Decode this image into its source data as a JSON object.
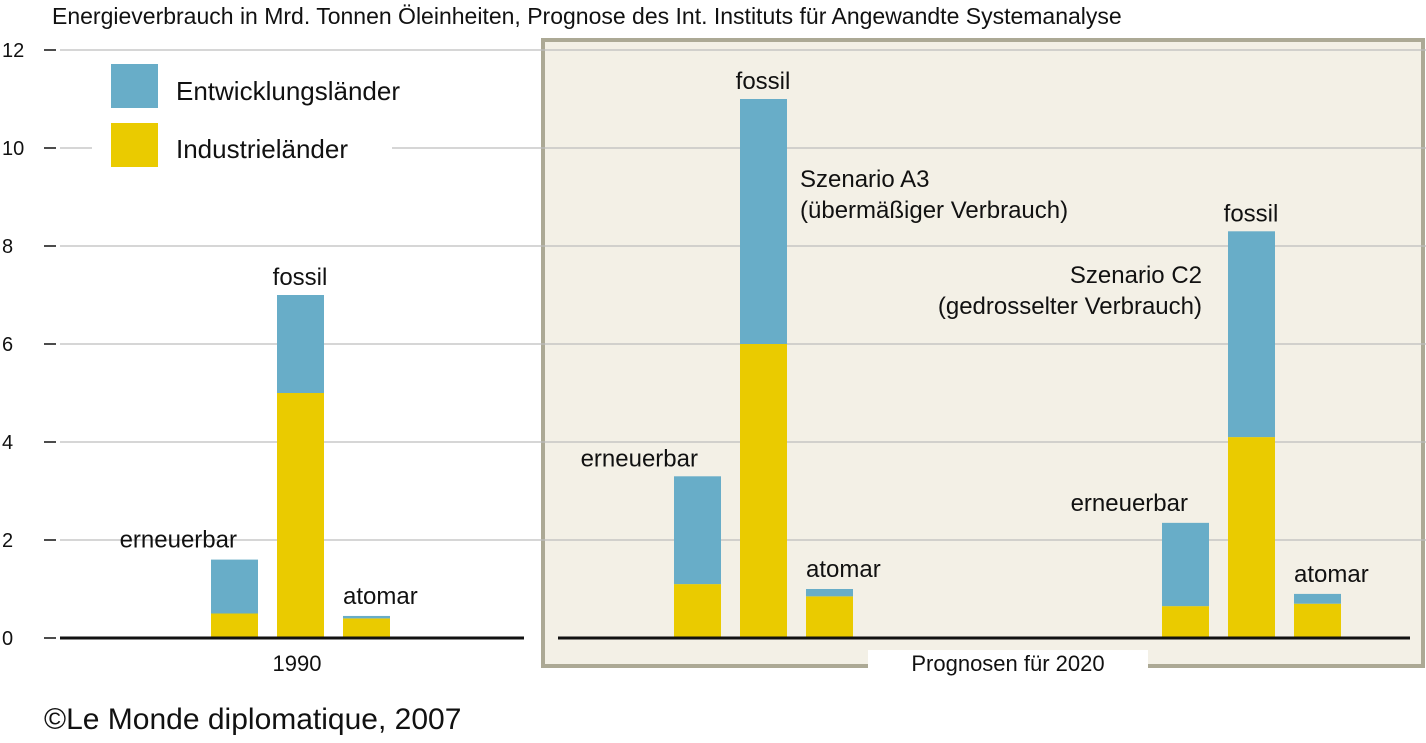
{
  "chart_data": {
    "type": "bar",
    "stacked": true,
    "title": "Energieverbrauch in Mrd. Tonnen Öleinheiten, Prognose des Int. Instituts für Angewandte Systemanalyse",
    "xlabel": "",
    "ylabel": "",
    "ylim": [
      0,
      12
    ],
    "yticks": [
      "0",
      "2",
      "4",
      "6",
      "8",
      "10",
      "12"
    ],
    "grid": true,
    "legend_position": "top-left",
    "series": [
      {
        "name": "Industrieländer",
        "color": "#eacb00"
      },
      {
        "name": "Entwicklungsländer",
        "color": "#68adc8"
      }
    ],
    "groups": [
      {
        "label": "1990",
        "scenario": "",
        "bars": [
          {
            "label": "erneuerbar",
            "industrie": 0.5,
            "entwicklung": 1.1,
            "total": 1.6
          },
          {
            "label": "fossil",
            "industrie": 5.0,
            "entwicklung": 2.0,
            "total": 7.0
          },
          {
            "label": "atomar",
            "industrie": 0.4,
            "entwicklung": 0.05,
            "total": 0.45
          }
        ]
      },
      {
        "label": "Prognosen für 2020",
        "scenario": "Szenario A3|(übermäßiger Verbrauch)",
        "bars": [
          {
            "label": "erneuerbar",
            "industrie": 1.1,
            "entwicklung": 2.2,
            "total": 3.3
          },
          {
            "label": "fossil",
            "industrie": 6.0,
            "entwicklung": 5.0,
            "total": 11.0
          },
          {
            "label": "atomar",
            "industrie": 0.85,
            "entwicklung": 0.15,
            "total": 1.0
          }
        ]
      },
      {
        "label": "Prognosen für 2020",
        "scenario": "Szenario C2|(gedrosselter Verbrauch)",
        "bars": [
          {
            "label": "erneuerbar",
            "industrie": 0.65,
            "entwicklung": 1.7,
            "total": 2.35
          },
          {
            "label": "fossil",
            "industrie": 4.1,
            "entwicklung": 4.2,
            "total": 8.3
          },
          {
            "label": "atomar",
            "industrie": 0.7,
            "entwicklung": 0.2,
            "total": 0.9
          }
        ]
      }
    ],
    "group_labels": {
      "period_1990": "1990",
      "period_2020": "Prognosen für 2020"
    },
    "scenario_a3": {
      "line1": "Szenario A3",
      "line2": "(übermäßiger Verbrauch)"
    },
    "scenario_c2": {
      "line1": "Szenario C2",
      "line2": "(gedrosselter Verbrauch)"
    },
    "legend": {
      "developing": "Entwicklungsländer",
      "industrial": "Industrieländer"
    },
    "colors": {
      "developing": "#68adc8",
      "industrial": "#eacb00",
      "frame_fill": "#f3f0e6",
      "frame_border": "#aca995",
      "grid": "#bdbdbd"
    }
  },
  "copyright": "©Le Monde diplomatique, 2007"
}
